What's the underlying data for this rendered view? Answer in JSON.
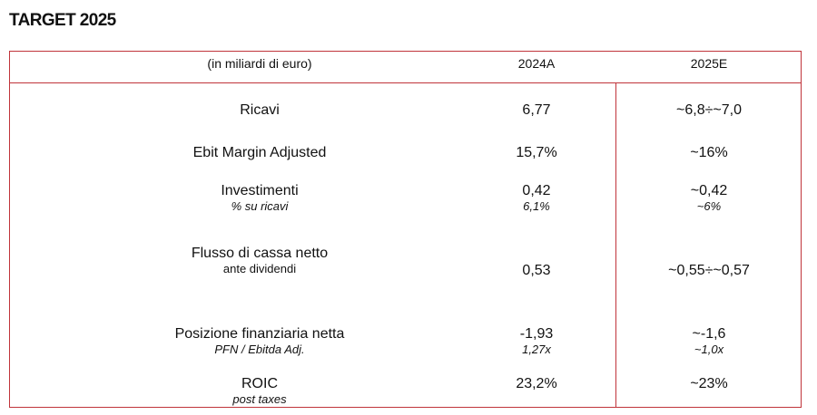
{
  "title": "TARGET 2025",
  "header": {
    "label": "(in miliardi di euro)",
    "col1": "2024A",
    "col2": "2025E"
  },
  "rows": [
    {
      "label": "Ricavi",
      "v1": "6,77",
      "v2": "~6,8÷~7,0"
    },
    {
      "label": "Ebit Margin Adjusted",
      "v1": "15,7%",
      "v2": "~16%"
    },
    {
      "label": "Investimenti",
      "sub": "% su ricavi",
      "v1": "0,42",
      "v1_sub": "6,1%",
      "v2": "~0,42",
      "v2_sub": "~6%"
    },
    {
      "label": "Flusso di cassa netto",
      "sub": "ante dividendi",
      "v1": "0,53",
      "v2": "~0,55÷~0,57"
    },
    {
      "label": "Posizione finanziaria netta",
      "sub": "PFN / Ebitda Adj.",
      "v1": "-1,93",
      "v1_sub": "1,27x",
      "v2": "~-1,6",
      "v2_sub": "~1,0x"
    },
    {
      "label": "ROIC",
      "sub": "post taxes",
      "v1": "23,2%",
      "v2": "~23%"
    }
  ]
}
